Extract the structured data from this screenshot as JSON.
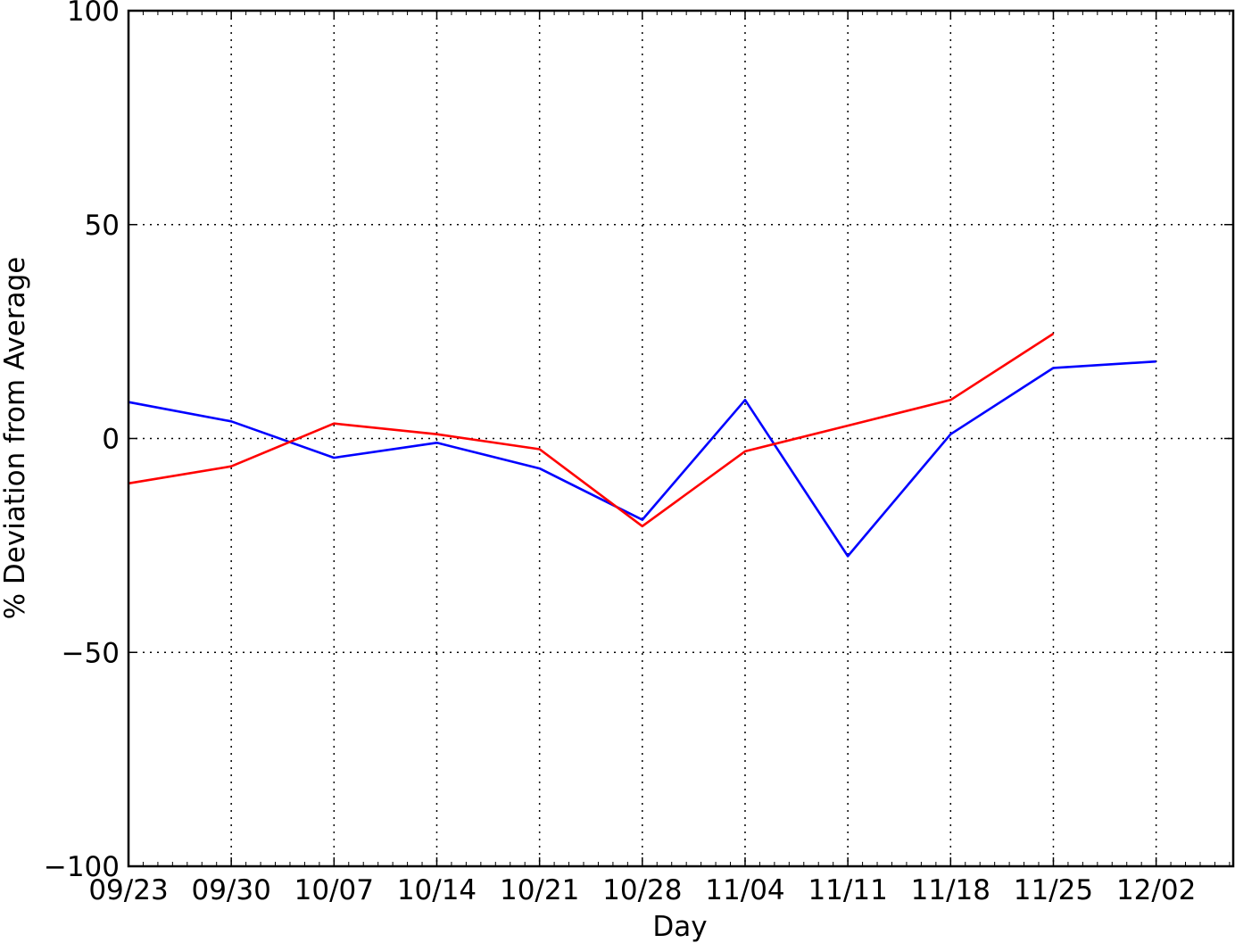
{
  "chart_data": {
    "type": "line",
    "title": "",
    "xlabel": "Day",
    "ylabel": "% Deviation from Average",
    "categories": [
      "09/23",
      "09/30",
      "10/07",
      "10/14",
      "10/21",
      "10/28",
      "11/04",
      "11/11",
      "11/18",
      "11/25",
      "12/02"
    ],
    "x_tick_labels": [
      "09/23",
      "09/30",
      "10/07",
      "10/14",
      "10/21",
      "10/28",
      "11/04",
      "11/11",
      "11/18",
      "11/25",
      "12/02"
    ],
    "x_range_weeks": [
      0,
      10.75
    ],
    "ylim": [
      -100,
      100
    ],
    "y_ticks": [
      -100,
      -50,
      0,
      50,
      100
    ],
    "y_tick_labels": [
      "−100",
      "−50",
      "0",
      "50",
      "100"
    ],
    "grid": true,
    "legend": "none",
    "series": [
      {
        "color": "#0000ff",
        "values": [
          8.5,
          4,
          -4.5,
          -1,
          -7,
          -19,
          9,
          -27.5,
          1,
          16.5,
          18
        ]
      },
      {
        "color": "#ff0000",
        "values": [
          -10.5,
          -6.5,
          3.5,
          1,
          -2.5,
          -20.5,
          -3,
          3,
          9,
          24.5,
          null
        ]
      }
    ]
  }
}
